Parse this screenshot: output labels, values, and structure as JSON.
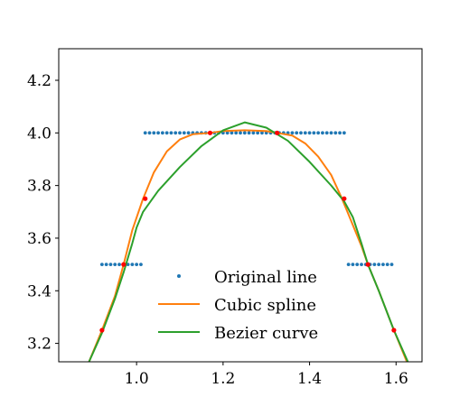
{
  "chart_data": {
    "type": "line",
    "title": "",
    "xlabel": "",
    "ylabel": "",
    "xlim": [
      0.82,
      1.66
    ],
    "ylim": [
      3.13,
      4.32
    ],
    "xticks": [
      1.0,
      1.2,
      1.4,
      1.6
    ],
    "xtick_labels": [
      "1.0",
      "1.2",
      "1.4",
      "1.6"
    ],
    "yticks": [
      3.2,
      3.4,
      3.6,
      3.8,
      4.0,
      4.2
    ],
    "ytick_labels": [
      "3.2",
      "3.4",
      "3.6",
      "3.8",
      "4.0",
      "4.2"
    ],
    "grid": false,
    "legend_position": "lower center",
    "series": [
      {
        "name": "Original line",
        "kind": "scatter",
        "color": "#1f77b4",
        "x": [
          0.92,
          0.93,
          0.94,
          0.95,
          0.96,
          0.97,
          0.98,
          0.99,
          1.0,
          1.01,
          1.02,
          1.03,
          1.04,
          1.05,
          1.06,
          1.07,
          1.08,
          1.09,
          1.1,
          1.11,
          1.12,
          1.13,
          1.14,
          1.15,
          1.16,
          1.17,
          1.18,
          1.19,
          1.2,
          1.21,
          1.22,
          1.23,
          1.24,
          1.25,
          1.26,
          1.27,
          1.28,
          1.29,
          1.3,
          1.31,
          1.32,
          1.33,
          1.34,
          1.35,
          1.36,
          1.37,
          1.38,
          1.39,
          1.4,
          1.41,
          1.42,
          1.43,
          1.44,
          1.45,
          1.46,
          1.47,
          1.48,
          1.49,
          1.5,
          1.51,
          1.52,
          1.53,
          1.54,
          1.55,
          1.56,
          1.57,
          1.58,
          1.59
        ],
        "y": [
          3.5,
          3.5,
          3.5,
          3.5,
          3.5,
          3.5,
          3.5,
          3.5,
          3.5,
          3.5,
          4.0,
          4.0,
          4.0,
          4.0,
          4.0,
          4.0,
          4.0,
          4.0,
          4.0,
          4.0,
          4.0,
          4.0,
          4.0,
          4.0,
          4.0,
          4.0,
          4.0,
          4.0,
          4.0,
          4.0,
          4.0,
          4.0,
          4.0,
          4.0,
          4.0,
          4.0,
          4.0,
          4.0,
          4.0,
          4.0,
          4.0,
          4.0,
          4.0,
          4.0,
          4.0,
          4.0,
          4.0,
          4.0,
          4.0,
          4.0,
          4.0,
          4.0,
          4.0,
          4.0,
          4.0,
          4.0,
          4.0,
          3.5,
          3.5,
          3.5,
          3.5,
          3.5,
          3.5,
          3.5,
          3.5,
          3.5,
          3.5,
          3.5
        ]
      },
      {
        "name": "Cubic spline",
        "kind": "line",
        "color": "#ff7f0e",
        "x": [
          0.89,
          0.92,
          0.95,
          0.97,
          0.99,
          1.015,
          1.04,
          1.07,
          1.1,
          1.13,
          1.17,
          1.2,
          1.25,
          1.3,
          1.325,
          1.36,
          1.39,
          1.42,
          1.45,
          1.475,
          1.5,
          1.52,
          1.535,
          1.56,
          1.595,
          1.625
        ],
        "y": [
          3.13,
          3.25,
          3.38,
          3.5,
          3.63,
          3.75,
          3.85,
          3.93,
          3.975,
          3.995,
          4.0,
          4.007,
          4.01,
          4.007,
          4.0,
          3.99,
          3.96,
          3.91,
          3.84,
          3.75,
          3.65,
          3.57,
          3.5,
          3.4,
          3.25,
          3.13
        ]
      },
      {
        "name": "Bezier curve",
        "kind": "line",
        "color": "#2ca02c",
        "x": [
          0.89,
          0.92,
          0.95,
          0.97,
          0.99,
          1.0,
          1.015,
          1.05,
          1.1,
          1.15,
          1.2,
          1.25,
          1.3,
          1.35,
          1.4,
          1.45,
          1.48,
          1.5,
          1.52,
          1.535,
          1.56,
          1.595,
          1.63
        ],
        "y": [
          3.13,
          3.24,
          3.37,
          3.47,
          3.58,
          3.64,
          3.7,
          3.78,
          3.87,
          3.95,
          4.01,
          4.04,
          4.02,
          3.97,
          3.89,
          3.8,
          3.74,
          3.68,
          3.58,
          3.5,
          3.4,
          3.25,
          3.12
        ]
      },
      {
        "name": "",
        "kind": "points",
        "color": "#ff0000",
        "x": [
          0.92,
          0.97,
          1.02,
          1.17,
          1.325,
          1.48,
          1.535,
          1.595
        ],
        "y": [
          3.25,
          3.5,
          3.75,
          4.0,
          4.0,
          3.75,
          3.5,
          3.25
        ]
      }
    ]
  }
}
